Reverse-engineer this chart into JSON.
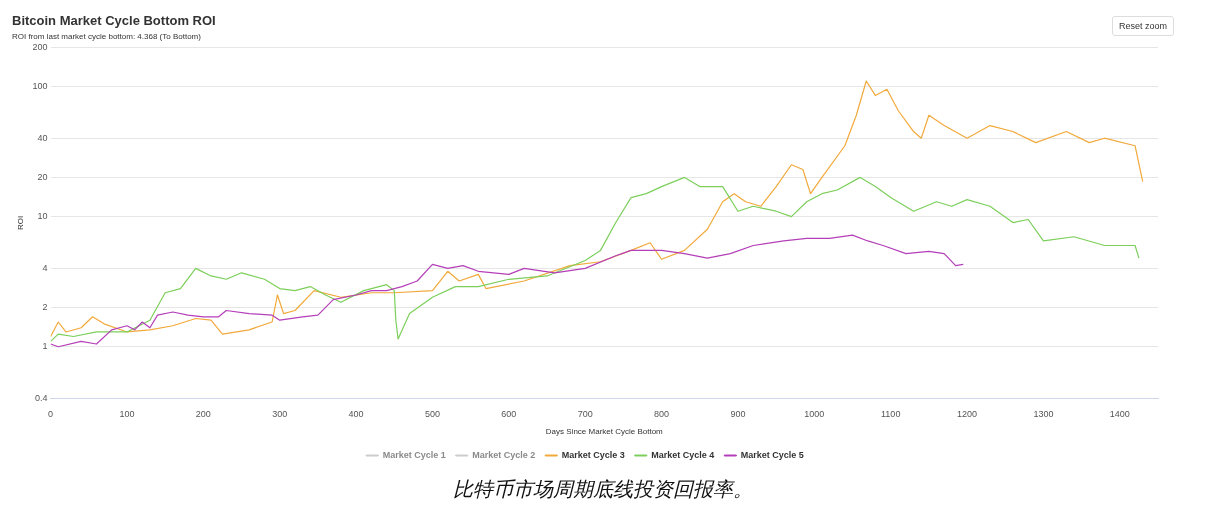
{
  "chart_data": {
    "type": "line",
    "title": "Bitcoin Market Cycle Bottom ROI",
    "subtitle": "ROI from last market cycle bottom: 4.368 (To Bottom)",
    "xlabel": "Days Since Market Cycle Bottom",
    "ylabel": "ROI",
    "log": "y",
    "xlim": [
      0,
      1450
    ],
    "xticks": [
      0,
      100,
      200,
      300,
      400,
      500,
      600,
      700,
      800,
      900,
      1000,
      1100,
      1200,
      1300,
      1400
    ],
    "ylim": [
      0.4,
      200
    ],
    "yticks": [
      0.4,
      1,
      2,
      4,
      10,
      20,
      40,
      100,
      200
    ],
    "grid": "y",
    "legend": "bottom",
    "marker": "none",
    "annotations": [
      "Reset zoom",
      "比特币市场周期底线投资回报率。"
    ],
    "series": [
      {
        "name": "Market Cycle 1",
        "color": "#cccccc"
      },
      {
        "name": "Market Cycle 2",
        "color": "#cccccc"
      },
      {
        "name": "Market Cycle 3",
        "color": "#f2a93b",
        "x": [
          0,
          10,
          20,
          40,
          55,
          70,
          100,
          130,
          160,
          190,
          210,
          225,
          260,
          290,
          297,
          305,
          320,
          345,
          380,
          420,
          450,
          500,
          520,
          535,
          560,
          570,
          620,
          680,
          720,
          760,
          785,
          800,
          830,
          860,
          880,
          895,
          910,
          930,
          950,
          970,
          985,
          995,
          1010,
          1040,
          1055,
          1068,
          1080,
          1095,
          1110,
          1130,
          1140,
          1150,
          1170,
          1200,
          1230,
          1260,
          1290,
          1330,
          1360,
          1380,
          1420,
          1430
        ],
        "values": [
          1.2,
          1.55,
          1.3,
          1.4,
          1.7,
          1.5,
          1.3,
          1.35,
          1.45,
          1.65,
          1.6,
          1.25,
          1.35,
          1.55,
          2.5,
          1.8,
          1.9,
          2.7,
          2.4,
          2.6,
          2.6,
          2.7,
          3.8,
          3.2,
          3.6,
          2.8,
          3.2,
          4.2,
          4.5,
          5.5,
          6.3,
          4.7,
          5.5,
          8,
          13,
          15,
          13,
          12,
          17,
          25,
          23,
          15,
          20,
          35,
          60,
          110,
          85,
          95,
          65,
          45,
          40,
          60,
          50,
          40,
          50,
          45,
          37,
          45,
          37,
          40,
          35,
          18.6
        ]
      },
      {
        "name": "Market Cycle 4",
        "color": "#7ccf5a",
        "x": [
          0,
          10,
          30,
          60,
          100,
          130,
          150,
          170,
          190,
          210,
          230,
          250,
          280,
          300,
          320,
          340,
          360,
          380,
          410,
          440,
          450,
          452,
          455,
          470,
          500,
          530,
          560,
          600,
          650,
          700,
          720,
          740,
          760,
          780,
          800,
          830,
          850,
          880,
          900,
          920,
          950,
          970,
          990,
          1010,
          1030,
          1060,
          1080,
          1100,
          1130,
          1160,
          1180,
          1200,
          1230,
          1260,
          1280,
          1300,
          1340,
          1380,
          1420,
          1425
        ],
        "values": [
          1.1,
          1.25,
          1.2,
          1.3,
          1.3,
          1.6,
          2.6,
          2.8,
          4,
          3.5,
          3.3,
          3.7,
          3.3,
          2.8,
          2.7,
          2.9,
          2.5,
          2.2,
          2.7,
          3,
          2.7,
          1.6,
          1.15,
          1.8,
          2.4,
          2.9,
          2.9,
          3.3,
          3.5,
          4.6,
          5.5,
          9,
          14,
          15,
          17,
          20,
          17,
          17,
          11,
          12,
          11,
          10,
          13,
          15,
          16,
          20,
          17,
          14,
          11,
          13,
          12,
          13.5,
          12,
          9,
          9.5,
          6.5,
          7,
          6,
          6,
          4.8
        ]
      },
      {
        "name": "Market Cycle 5",
        "color": "#b43fb8",
        "x": [
          0,
          10,
          40,
          60,
          80,
          100,
          110,
          120,
          130,
          140,
          160,
          180,
          200,
          220,
          230,
          260,
          290,
          300,
          330,
          350,
          370,
          400,
          420,
          440,
          460,
          480,
          500,
          520,
          540,
          560,
          600,
          620,
          660,
          700,
          740,
          760,
          800,
          830,
          860,
          890,
          920,
          960,
          990,
          1020,
          1050,
          1070,
          1090,
          1120,
          1150,
          1170,
          1185,
          1195
        ],
        "values": [
          1.05,
          1.0,
          1.1,
          1.05,
          1.35,
          1.45,
          1.35,
          1.55,
          1.4,
          1.75,
          1.85,
          1.75,
          1.7,
          1.7,
          1.9,
          1.8,
          1.75,
          1.6,
          1.7,
          1.75,
          2.3,
          2.5,
          2.7,
          2.7,
          2.9,
          3.2,
          4.3,
          4.0,
          4.2,
          3.8,
          3.6,
          4.0,
          3.7,
          4.0,
          5.0,
          5.5,
          5.5,
          5.2,
          4.8,
          5.2,
          6.0,
          6.5,
          6.8,
          6.8,
          7.2,
          6.5,
          6.0,
          5.2,
          5.4,
          5.2,
          4.2,
          4.3
        ]
      }
    ]
  }
}
